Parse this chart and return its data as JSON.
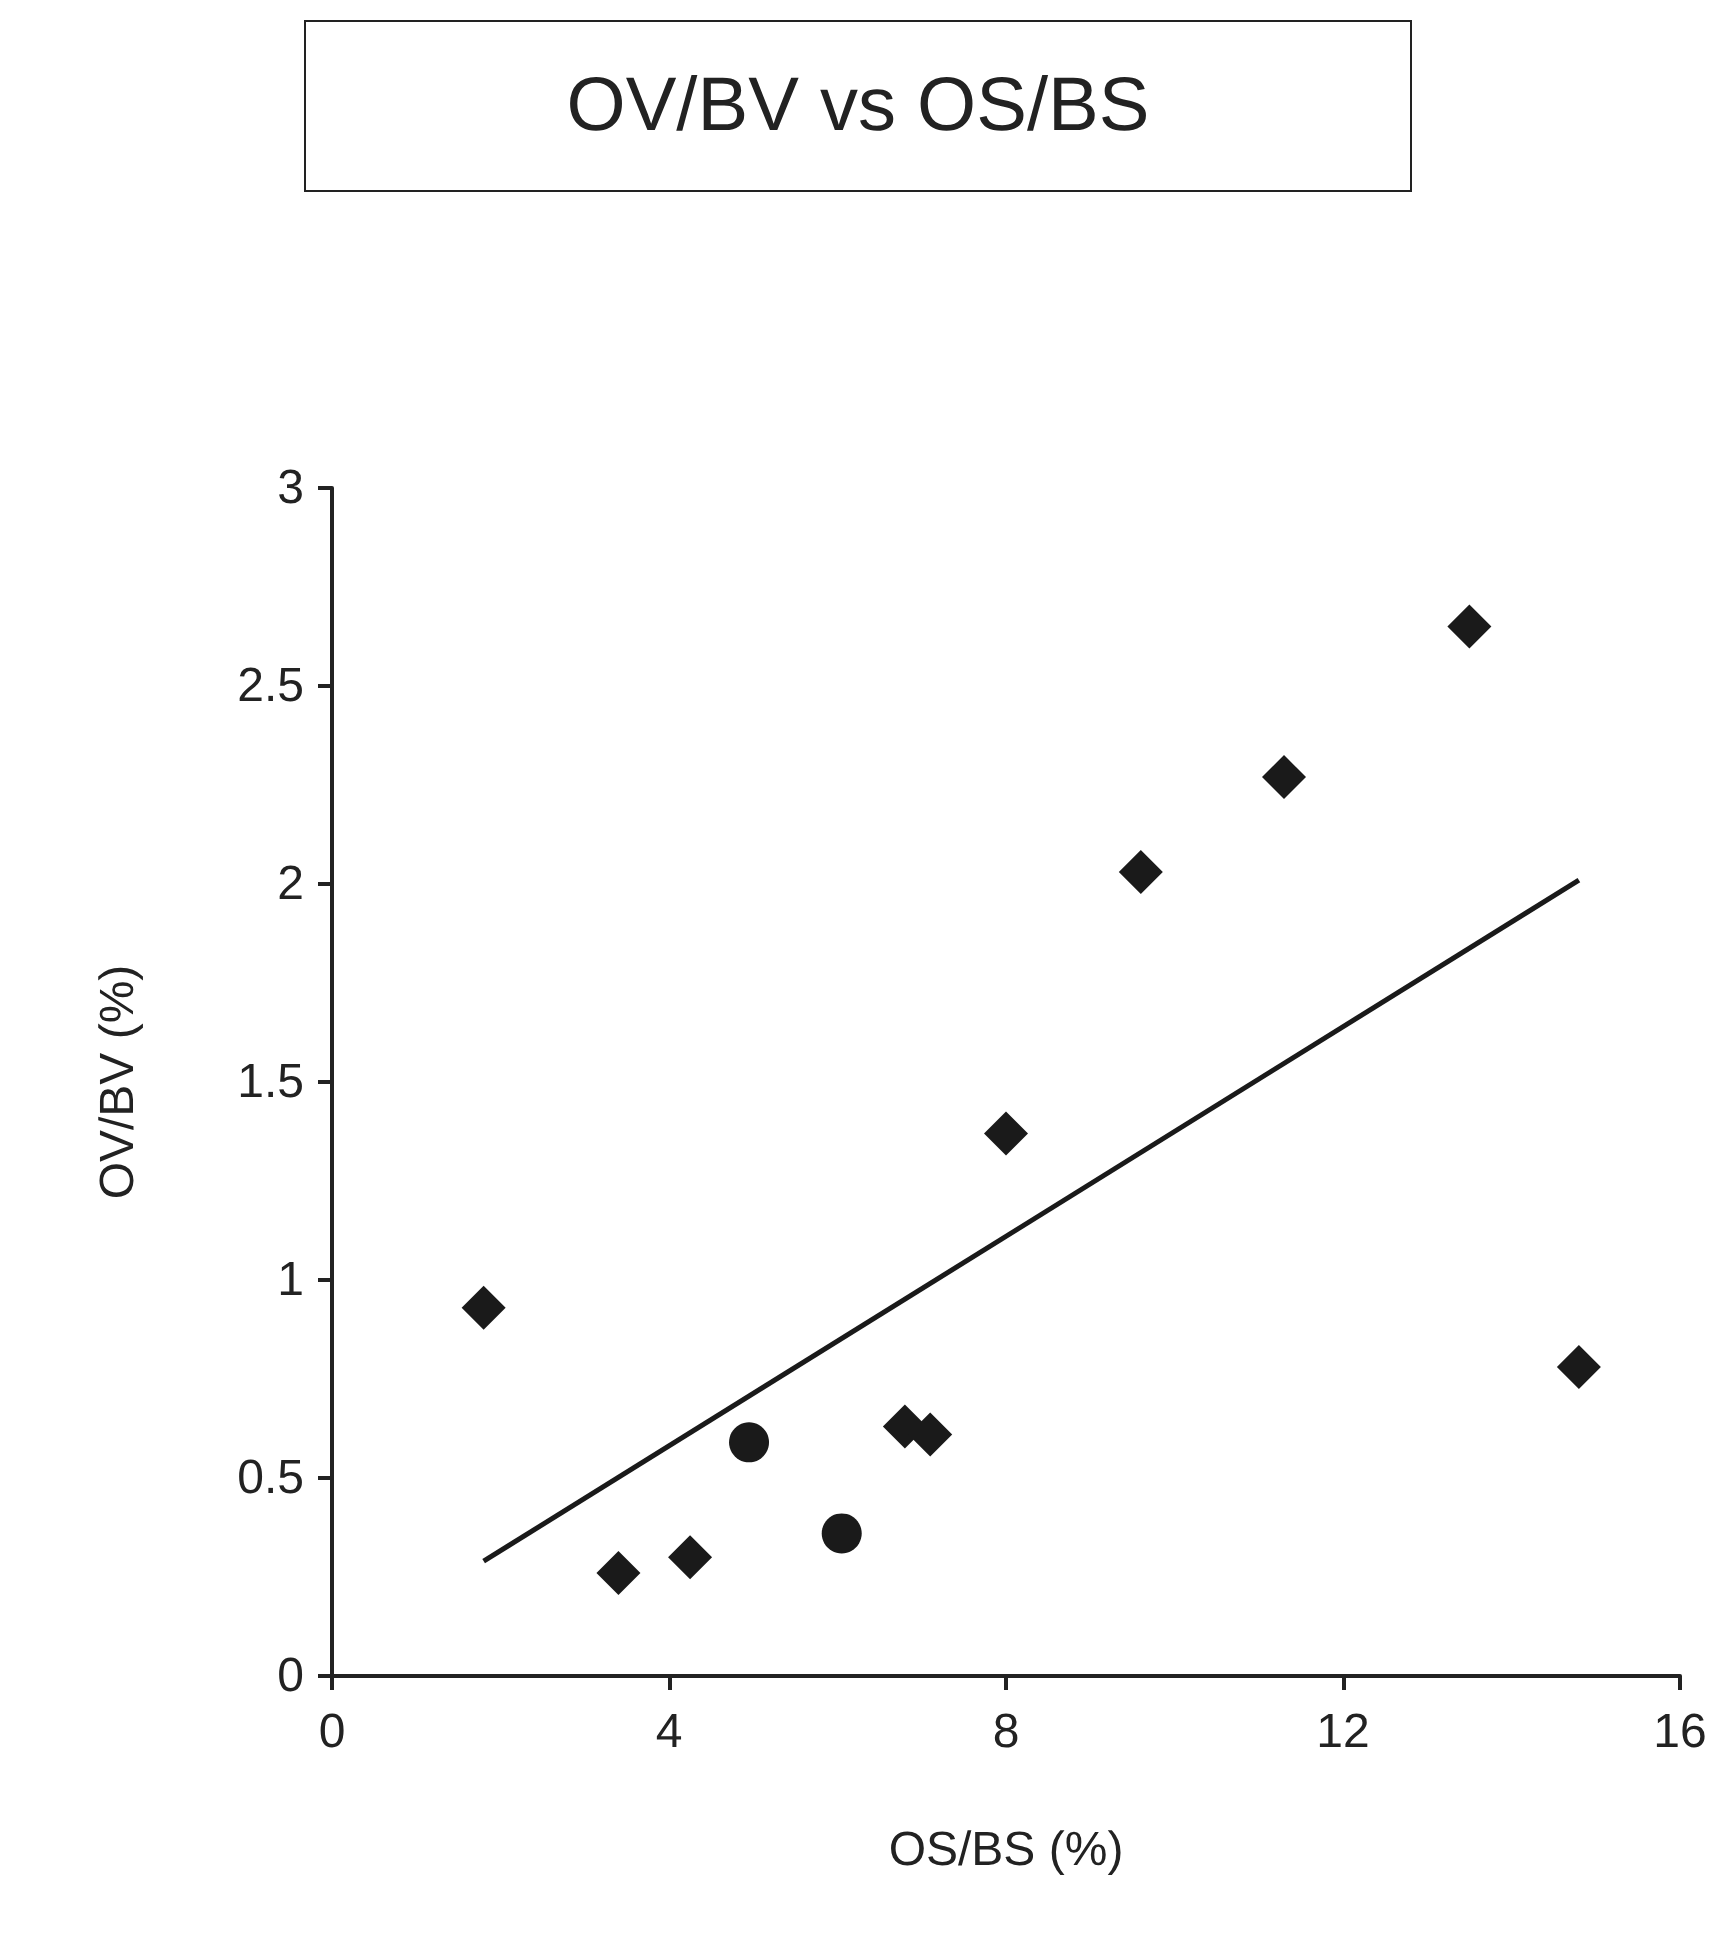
{
  "chart_data": {
    "type": "scatter",
    "title": "OV/BV vs OS/BS",
    "xlabel": "OS/BS (%)",
    "ylabel": "OV/BV (%)",
    "xlim": [
      0,
      16
    ],
    "xticks": [
      0,
      4,
      8,
      12,
      16
    ],
    "ylim": [
      0,
      3
    ],
    "yticks": [
      0,
      0.5,
      1,
      1.5,
      2,
      2.5,
      3
    ],
    "grid": false,
    "series": [
      {
        "color": "#1a1a1a",
        "marker": "diamond",
        "x": [
          1.8,
          3.4,
          4.25,
          6.8,
          7.1,
          8.0,
          9.6,
          11.3,
          13.5,
          14.8
        ],
        "values": [
          0.93,
          0.26,
          0.3,
          0.63,
          0.61,
          1.37,
          2.03,
          2.27,
          2.65,
          0.78
        ]
      },
      {
        "color": "#1a1a1a",
        "marker": "circle",
        "x": [
          4.95,
          6.05
        ],
        "values": [
          0.59,
          0.36
        ]
      },
      {
        "type": "line",
        "color": "#1a1a1a",
        "marker": "none",
        "line_style": "solid",
        "x": [
          1.8,
          14.8
        ],
        "values": [
          0.29,
          2.01
        ]
      }
    ]
  }
}
